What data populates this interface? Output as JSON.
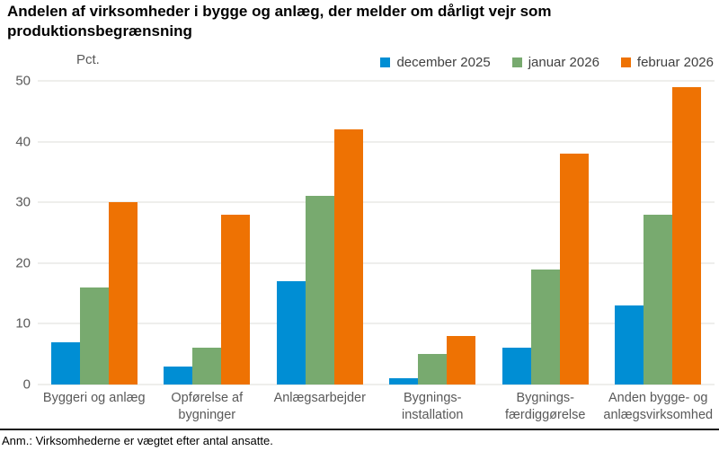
{
  "note": "Anm.: Virksomhederne er vægtet efter antal ansatte.",
  "chart_data": {
    "type": "bar",
    "title": "Andelen af virksomheder i bygge og anlæg, der melder om dårligt vejr som produktionsbegrænsning",
    "unit_label": "Pct.",
    "categories": [
      [
        "Byggeri og anlæg"
      ],
      [
        "Opførelse af",
        "bygninger"
      ],
      [
        "Anlægsarbejder"
      ],
      [
        "Bygnings-",
        "installation"
      ],
      [
        "Bygnings-",
        "færdiggørelse"
      ],
      [
        "Anden bygge- og",
        "anlægsvirksomhed"
      ]
    ],
    "series": [
      {
        "name": "december 2025",
        "color": "#008ED4",
        "values": [
          7,
          3,
          17,
          1,
          6,
          13
        ]
      },
      {
        "name": "januar 2026",
        "color": "#78AA6F",
        "values": [
          16,
          6,
          31,
          5,
          19,
          28
        ]
      },
      {
        "name": "februar 2026",
        "color": "#EE7203",
        "values": [
          30,
          28,
          42,
          8,
          38,
          49
        ]
      }
    ],
    "ylim": [
      0,
      50
    ],
    "yticks": [
      0,
      10,
      20,
      30,
      40,
      50
    ],
    "grid": true,
    "legend_position": "top-right",
    "colors": {
      "gridline": "#dcdcda",
      "axis_text": "#595959",
      "legend_text": "#404040",
      "divider": "#1a1a1a"
    }
  }
}
